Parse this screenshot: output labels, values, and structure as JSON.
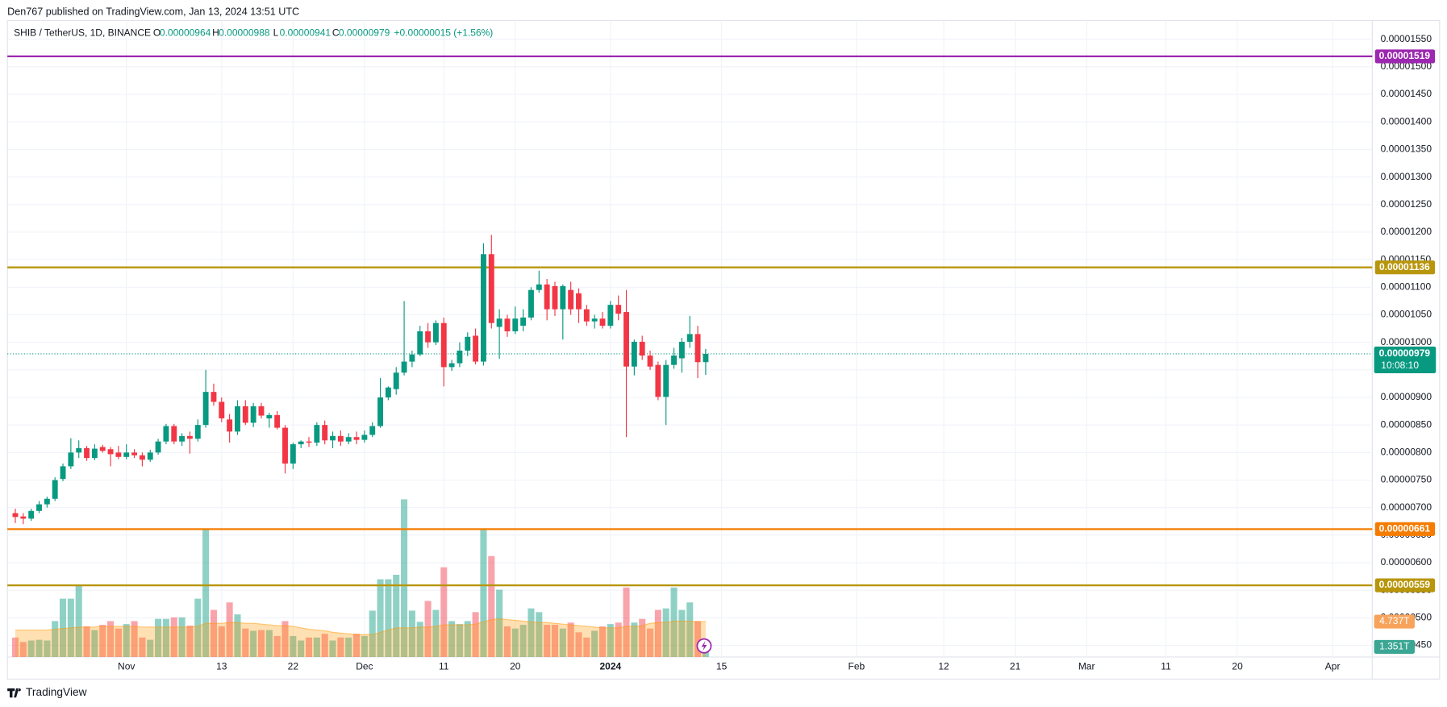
{
  "header": {
    "published": "Den767 published on TradingView.com, Jan 13, 2024 13:51 UTC",
    "symbol": "SHIB / TetherUS, 1D, BINANCE",
    "open_key": "O",
    "open": "0.00000964",
    "high_key": "H",
    "high": "0.00000988",
    "low_key": "L",
    "low": "0.00000941",
    "close_key": "C",
    "close": "0.00000979",
    "change": "+0.00000015 (+1.56%)"
  },
  "footer": {
    "brand": "TradingView"
  },
  "chart_data": {
    "type": "candlestick",
    "up_color": "#089981",
    "down_color": "#f23645",
    "x": [
      "2023-10-18",
      "2023-10-19",
      "2023-10-20",
      "2023-10-21",
      "2023-10-22",
      "2023-10-23",
      "2023-10-24",
      "2023-10-25",
      "2023-10-26",
      "2023-10-27",
      "2023-10-28",
      "2023-10-29",
      "2023-10-30",
      "2023-10-31",
      "2023-11-01",
      "2023-11-02",
      "2023-11-03",
      "2023-11-04",
      "2023-11-05",
      "2023-11-06",
      "2023-11-07",
      "2023-11-08",
      "2023-11-09",
      "2023-11-10",
      "2023-11-11",
      "2023-11-12",
      "2023-11-13",
      "2023-11-14",
      "2023-11-15",
      "2023-11-16",
      "2023-11-17",
      "2023-11-18",
      "2023-11-19",
      "2023-11-20",
      "2023-11-21",
      "2023-11-22",
      "2023-11-23",
      "2023-11-24",
      "2023-11-25",
      "2023-11-26",
      "2023-11-27",
      "2023-11-28",
      "2023-11-29",
      "2023-11-30",
      "2023-12-01",
      "2023-12-02",
      "2023-12-03",
      "2023-12-04",
      "2023-12-05",
      "2023-12-06",
      "2023-12-07",
      "2023-12-08",
      "2023-12-09",
      "2023-12-10",
      "2023-12-11",
      "2023-12-12",
      "2023-12-13",
      "2023-12-14",
      "2023-12-15",
      "2023-12-16",
      "2023-12-17",
      "2023-12-18",
      "2023-12-19",
      "2023-12-20",
      "2023-12-21",
      "2023-12-22",
      "2023-12-23",
      "2023-12-24",
      "2023-12-25",
      "2023-12-26",
      "2023-12-27",
      "2023-12-28",
      "2023-12-29",
      "2023-12-30",
      "2023-12-31",
      "2024-01-01",
      "2024-01-02",
      "2024-01-03",
      "2024-01-04",
      "2024-01-05",
      "2024-01-06",
      "2024-01-07",
      "2024-01-08",
      "2024-01-09",
      "2024-01-10",
      "2024-01-11",
      "2024-01-12",
      "2024-01-13"
    ],
    "open": [
      6.9e-06,
      6.84e-06,
      6.8e-06,
      6.94e-06,
      7.06e-06,
      7.16e-06,
      7.52e-06,
      7.75e-06,
      8e-06,
      8.08e-06,
      7.9e-06,
      8.1e-06,
      8.06e-06,
      8e-06,
      7.92e-06,
      8e-06,
      7.95e-06,
      7.87e-06,
      8e-06,
      8.2e-06,
      8.48e-06,
      8.2e-06,
      8.3e-06,
      8.25e-06,
      8.5e-06,
      9.1e-06,
      8.92e-06,
      8.6e-06,
      8.38e-06,
      8.84e-06,
      8.54e-06,
      8.84e-06,
      8.62e-06,
      8.68e-06,
      8.45e-06,
      7.8e-06,
      8.15e-06,
      8.2e-06,
      8.18e-06,
      8.5e-06,
      8.22e-06,
      8.3e-06,
      8.2e-06,
      8.28e-06,
      8.23e-06,
      8.32e-06,
      8.48e-06,
      9e-06,
      9.15e-06,
      9.45e-06,
      9.65e-06,
      9.78e-06,
      1.02e-05,
      1e-05,
      1.035e-05,
      9.55e-06,
      9.62e-06,
      9.85e-06,
      1.012e-05,
      9.65e-06,
      1.16e-05,
      1.028e-05,
      1.043e-05,
      1.02e-05,
      1.03e-05,
      1.045e-05,
      1.095e-05,
      1.105e-05,
      1.102e-05,
      1.06e-05,
      1.095e-05,
      1.089e-05,
      1.06e-05,
      1.038e-05,
      1.043e-05,
      1.03e-05,
      1.068e-05,
      1.055e-05,
      9.56e-06,
      1.001e-05,
      9.76e-06,
      9.59e-06,
      9.01e-06,
      9.59e-06,
      9.71e-06,
      1.001e-05,
      1.015e-05,
      9.64e-06
    ],
    "high": [
      6.98e-06,
      6.9e-06,
      6.98e-06,
      7.12e-06,
      7.2e-06,
      7.55e-06,
      7.8e-06,
      8.26e-06,
      8.22e-06,
      8.12e-06,
      8.15e-06,
      8.14e-06,
      8.1e-06,
      8.12e-06,
      8.15e-06,
      8.06e-06,
      8e-06,
      8.05e-06,
      8.25e-06,
      8.52e-06,
      8.52e-06,
      8.35e-06,
      8.38e-06,
      8.6e-06,
      9.5e-06,
      9.25e-06,
      9e-06,
      8.7e-06,
      8.95e-06,
      8.95e-06,
      8.9e-06,
      8.9e-06,
      8.72e-06,
      8.75e-06,
      8.5e-06,
      8.18e-06,
      8.22e-06,
      8.28e-06,
      8.55e-06,
      8.58e-06,
      8.38e-06,
      8.4e-06,
      8.35e-06,
      8.38e-06,
      8.4e-06,
      8.55e-06,
      9.35e-06,
      9.2e-06,
      9.55e-06,
      1.075e-05,
      9.85e-06,
      1.03e-05,
      1.035e-05,
      1.04e-05,
      1.045e-05,
      9.68e-06,
      1e-05,
      1.018e-05,
      1.025e-05,
      1.18e-05,
      1.195e-05,
      1.06e-05,
      1.05e-05,
      1.065e-05,
      1.06e-05,
      1.1e-05,
      1.13e-05,
      1.115e-05,
      1.11e-05,
      1.105e-05,
      1.11e-05,
      1.098e-05,
      1.068e-05,
      1.05e-05,
      1.055e-05,
      1.075e-05,
      1.085e-05,
      1.095e-05,
      1.005e-05,
      1.012e-05,
      9.85e-06,
      9.65e-06,
      9.68e-06,
      9.9e-06,
      1.008e-05,
      1.048e-05,
      1.03e-05,
      9.88e-06
    ],
    "low": [
      6.72e-06,
      6.7e-06,
      6.76e-06,
      6.9e-06,
      7e-06,
      7.12e-06,
      7.48e-06,
      7.7e-06,
      7.9e-06,
      7.85e-06,
      7.86e-06,
      8e-06,
      7.75e-06,
      7.88e-06,
      7.88e-06,
      7.9e-06,
      7.75e-06,
      7.83e-06,
      7.96e-06,
      8.15e-06,
      8.15e-06,
      8.12e-06,
      7.98e-06,
      8.2e-06,
      8.45e-06,
      8.85e-06,
      8.55e-06,
      8.18e-06,
      8.32e-06,
      8.5e-06,
      8.46e-06,
      8.62e-06,
      8.45e-06,
      8.42e-06,
      7.62e-06,
      7.7e-06,
      8.08e-06,
      8.1e-06,
      8.12e-06,
      8.15e-06,
      8.08e-06,
      8.12e-06,
      8.15e-06,
      8.15e-06,
      8.18e-06,
      8.28e-06,
      8.45e-06,
      8.95e-06,
      9.05e-06,
      9.4e-06,
      9.55e-06,
      9.75e-06,
      9.9e-06,
      9.95e-06,
      9.2e-06,
      9.48e-06,
      9.55e-06,
      9.75e-06,
      9.6e-06,
      9.58e-06,
      1.025e-05,
      9.7e-06,
      1.01e-05,
      1.015e-05,
      1.02e-05,
      1.04e-05,
      1.09e-05,
      1.04e-05,
      1.048e-05,
      1.005e-05,
      1.05e-05,
      1.035e-05,
      1.03e-05,
      1.025e-05,
      1.025e-05,
      1.025e-05,
      1.04e-05,
      8.28e-06,
      9.4e-06,
      9.68e-06,
      9.5e-06,
      8.95e-06,
      8.5e-06,
      9.52e-06,
      9.45e-06,
      9.9e-06,
      9.35e-06,
      9.41e-06
    ],
    "close": [
      6.83e-06,
      6.8e-06,
      6.94e-06,
      7.06e-06,
      7.16e-06,
      7.5e-06,
      7.75e-06,
      8e-06,
      8.08e-06,
      7.9e-06,
      8.07e-06,
      8.03e-06,
      7.97e-06,
      7.92e-06,
      8e-06,
      7.95e-06,
      7.87e-06,
      8e-06,
      8.2e-06,
      8.48e-06,
      8.2e-06,
      8.3e-06,
      8.25e-06,
      8.5e-06,
      9.1e-06,
      8.92e-06,
      8.62e-06,
      8.38e-06,
      8.84e-06,
      8.54e-06,
      8.84e-06,
      8.67e-06,
      8.68e-06,
      8.45e-06,
      7.8e-06,
      8.15e-06,
      8.2e-06,
      8.18e-06,
      8.5e-06,
      8.22e-06,
      8.3e-06,
      8.2e-06,
      8.28e-06,
      8.23e-06,
      8.32e-06,
      8.48e-06,
      9e-06,
      9.18e-06,
      9.45e-06,
      9.65e-06,
      9.78e-06,
      1.02e-05,
      1e-05,
      1.035e-05,
      9.55e-06,
      9.62e-06,
      9.85e-06,
      1.01e-05,
      9.65e-06,
      1.16e-05,
      1.035e-05,
      1.043e-05,
      1.02e-05,
      1.043e-05,
      1.045e-05,
      1.095e-05,
      1.105e-05,
      1.06e-05,
      1.06e-05,
      1.102e-05,
      1.06e-05,
      1.06e-05,
      1.038e-05,
      1.043e-05,
      1.03e-05,
      1.068e-05,
      1.052e-05,
      9.56e-06,
      1.001e-05,
      9.76e-06,
      9.56e-06,
      9.01e-06,
      9.59e-06,
      9.76e-06,
      1.001e-05,
      1.015e-05,
      9.64e-06,
      9.79e-06
    ],
    "volume": {
      "values": [
        2.6,
        2.0,
        2.2,
        2.3,
        2.2,
        4.8,
        7.8,
        7.8,
        9.6,
        4.1,
        3.6,
        4.3,
        4.8,
        3.8,
        4.4,
        4.8,
        2.6,
        2.3,
        5.1,
        5.1,
        5.3,
        5.3,
        4.2,
        7.8,
        17.2,
        6.3,
        4.1,
        7.3,
        5.7,
        3.8,
        3.5,
        3.6,
        3.6,
        2.8,
        4.8,
        2.8,
        2.2,
        2.6,
        2.6,
        3.1,
        2.2,
        2.6,
        2.6,
        3.1,
        2.8,
        6.2,
        10.4,
        10.4,
        11.0,
        21.1,
        6.2,
        4.7,
        7.5,
        6.3,
        12.0,
        4.8,
        4.4,
        4.8,
        6.0,
        17.2,
        13.5,
        9.0,
        4.1,
        3.8,
        4.3,
        6.5,
        6.0,
        4.3,
        4.3,
        3.8,
        4.6,
        3.3,
        2.6,
        3.5,
        4.1,
        4.4,
        4.6,
        9.3,
        4.6,
        5.1,
        3.8,
        6.3,
        6.5,
        9.3,
        6.3,
        7.3,
        4.8,
        1.351
      ],
      "last_label": "1.351T"
    },
    "volume_ma": {
      "color": "#ff9800",
      "values": [
        3.6,
        3.6,
        3.6,
        3.6,
        3.6,
        3.7,
        3.8,
        3.9,
        4.0,
        4.0,
        4.0,
        4.1,
        4.1,
        4.1,
        4.1,
        4.1,
        4.0,
        4.0,
        4.0,
        4.0,
        4.0,
        4.0,
        4.0,
        4.1,
        4.5,
        4.5,
        4.5,
        4.6,
        4.6,
        4.5,
        4.5,
        4.4,
        4.3,
        4.2,
        4.2,
        4.1,
        3.9,
        3.7,
        3.6,
        3.5,
        3.3,
        3.2,
        3.1,
        3.0,
        3.0,
        3.0,
        3.3,
        3.6,
        3.9,
        3.9,
        3.9,
        4.0,
        4.0,
        4.1,
        4.3,
        4.3,
        4.3,
        4.3,
        4.4,
        4.7,
        5.0,
        5.1,
        5.0,
        4.9,
        4.8,
        4.7,
        4.6,
        4.6,
        4.5,
        4.4,
        4.3,
        4.2,
        4.1,
        4.0,
        3.9,
        3.9,
        3.9,
        4.1,
        4.1,
        4.2,
        4.5,
        4.6,
        4.6,
        4.8,
        4.8,
        4.8,
        4.7,
        4.737
      ],
      "last_label": "4.737T"
    },
    "xlim": [
      "2023-10-17",
      "2024-04-06"
    ],
    "xticks": [
      {
        "value": "2023-11-01",
        "label": "Nov"
      },
      {
        "value": "2023-11-13",
        "label": "13"
      },
      {
        "value": "2023-11-22",
        "label": "22"
      },
      {
        "value": "2023-12-01",
        "label": "Dec"
      },
      {
        "value": "2023-12-11",
        "label": "11"
      },
      {
        "value": "2023-12-20",
        "label": "20"
      },
      {
        "value": "2024-01-01",
        "label": "2024"
      },
      {
        "value": "2024-01-15",
        "label": "15"
      },
      {
        "value": "2024-02-01",
        "label": "Feb"
      },
      {
        "value": "2024-02-12",
        "label": "12"
      },
      {
        "value": "2024-02-21",
        "label": "21"
      },
      {
        "value": "2024-03-01",
        "label": "Mar"
      },
      {
        "value": "2024-03-11",
        "label": "11"
      },
      {
        "value": "2024-03-20",
        "label": "20"
      },
      {
        "value": "2024-04-01",
        "label": "Apr"
      }
    ],
    "ylim": [
      4.29e-06,
      1.584e-05
    ],
    "yticks": [
      {
        "value": 4.5e-06,
        "label": "0.00000450"
      },
      {
        "value": 5e-06,
        "label": "0.00000500"
      },
      {
        "value": 5.5e-06,
        "label": "0.00000550"
      },
      {
        "value": 6e-06,
        "label": "0.00000600"
      },
      {
        "value": 6.5e-06,
        "label": "0.00000650"
      },
      {
        "value": 7e-06,
        "label": "0.00000700"
      },
      {
        "value": 7.5e-06,
        "label": "0.00000750"
      },
      {
        "value": 8e-06,
        "label": "0.00000800"
      },
      {
        "value": 8.5e-06,
        "label": "0.00000850"
      },
      {
        "value": 9e-06,
        "label": "0.00000900"
      },
      {
        "value": 9.5e-06,
        "label": "0.00000950"
      },
      {
        "value": 1e-05,
        "label": "0.00001000"
      },
      {
        "value": 1.05e-05,
        "label": "0.00001050"
      },
      {
        "value": 1.1e-05,
        "label": "0.00001100"
      },
      {
        "value": 1.15e-05,
        "label": "0.00001150"
      },
      {
        "value": 1.2e-05,
        "label": "0.00001200"
      },
      {
        "value": 1.25e-05,
        "label": "0.00001250"
      },
      {
        "value": 1.3e-05,
        "label": "0.00001300"
      },
      {
        "value": 1.35e-05,
        "label": "0.00001350"
      },
      {
        "value": 1.4e-05,
        "label": "0.00001400"
      },
      {
        "value": 1.45e-05,
        "label": "0.00001450"
      },
      {
        "value": 1.5e-05,
        "label": "0.00001500"
      },
      {
        "value": 1.55e-05,
        "label": "0.00001550"
      }
    ],
    "grid": true,
    "levels": [
      {
        "value": 1.519e-05,
        "label": "0.00001519",
        "color": "#9c27b0"
      },
      {
        "value": 1.136e-05,
        "label": "0.00001136",
        "color": "#b8960c"
      },
      {
        "value": 6.61e-06,
        "label": "0.00000661",
        "color": "#f57c00"
      },
      {
        "value": 5.59e-06,
        "label": "0.00000559",
        "color": "#b8960c"
      }
    ],
    "current_price": {
      "value": 9.79e-06,
      "label": "0.00000979",
      "countdown": "10:08:10",
      "color": "#089981"
    }
  }
}
